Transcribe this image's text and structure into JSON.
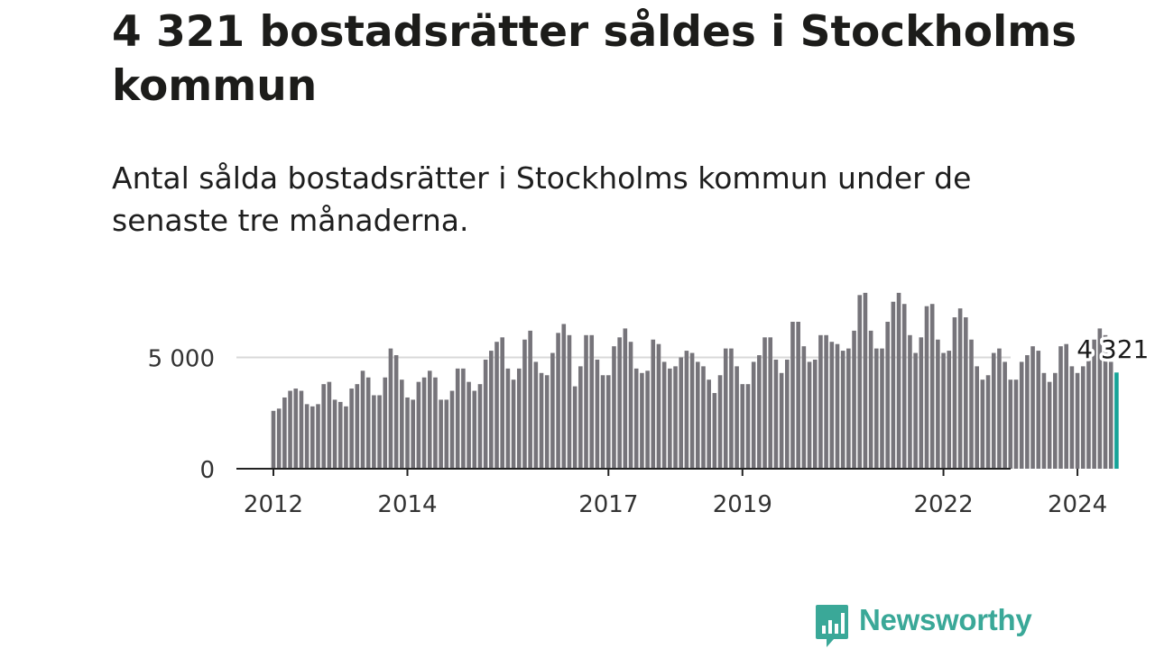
{
  "header": {
    "title": "4 321 bostadsrätter såldes i Stockholms kommun",
    "subtitle": "Antal sålda bostadsrätter i Stockholms kommun under de senaste tre månaderna."
  },
  "brand": {
    "name": "Newsworthy",
    "color": "#3aa898"
  },
  "chart_data": {
    "type": "bar",
    "title": "4 321 bostadsrätter såldes i Stockholms kommun",
    "subtitle": "Antal sålda bostadsrätter i Stockholms kommun under de senaste tre månaderna.",
    "xlabel": "",
    "ylabel": "",
    "ylim": [
      0,
      8400
    ],
    "yticks": [
      0,
      5000
    ],
    "ytick_labels": [
      "0",
      "5 000"
    ],
    "x_start": "2012-01",
    "xtick_labels": [
      "2012",
      "2014",
      "2017",
      "2019",
      "2022",
      "2024"
    ],
    "xtick_month_index": [
      0,
      24,
      60,
      84,
      120,
      144
    ],
    "bar_color": "#76747a",
    "highlight_color": "#17a398",
    "grid": true,
    "annotation": {
      "text": "4 321",
      "month_index": 151,
      "value": 4321
    },
    "values": [
      2600,
      2700,
      3200,
      3500,
      3600,
      3500,
      2900,
      2800,
      2900,
      3800,
      3900,
      3100,
      3000,
      2800,
      3600,
      3800,
      4400,
      4100,
      3300,
      3300,
      4100,
      5400,
      5100,
      4000,
      3200,
      3100,
      3900,
      4100,
      4400,
      4100,
      3100,
      3100,
      3500,
      4500,
      4500,
      3900,
      3500,
      3800,
      4900,
      5300,
      5700,
      5900,
      4500,
      4000,
      4500,
      5800,
      6200,
      4800,
      4300,
      4200,
      5200,
      6100,
      6500,
      6000,
      3700,
      4600,
      6000,
      6000,
      4900,
      4200,
      4200,
      5500,
      5900,
      6300,
      5700,
      4500,
      4300,
      4400,
      5800,
      5600,
      4800,
      4500,
      4600,
      5000,
      5300,
      5200,
      4800,
      4600,
      4000,
      3400,
      4200,
      5400,
      5400,
      4600,
      3800,
      3800,
      4800,
      5100,
      5900,
      5900,
      4900,
      4300,
      4900,
      6600,
      6600,
      5500,
      4800,
      4900,
      6000,
      6000,
      5700,
      5600,
      5300,
      5400,
      6200,
      7800,
      7900,
      6200,
      5400,
      5400,
      6600,
      7500,
      7900,
      7400,
      6000,
      5200,
      5900,
      7300,
      7400,
      5800,
      5200,
      5300,
      6800,
      7200,
      6800,
      5800,
      4600,
      4000,
      4200,
      5200,
      5400,
      4800,
      4000,
      4000,
      4800,
      5100,
      5500,
      5300,
      4300,
      3900,
      4300,
      5500,
      5600,
      4600,
      4300,
      4600,
      4900,
      5800,
      6300,
      6000,
      4800,
      4321
    ]
  }
}
